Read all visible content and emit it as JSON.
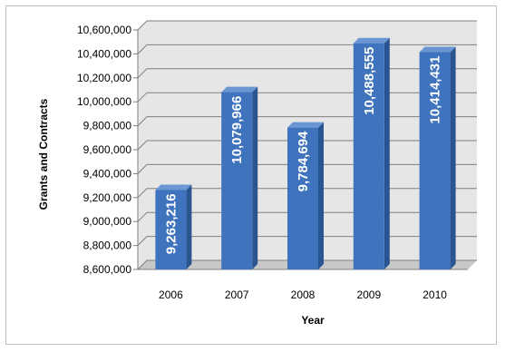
{
  "chart_data": {
    "type": "bar",
    "title": "",
    "xlabel": "Year",
    "ylabel": "Grants and Contracts",
    "categories": [
      "2006",
      "2007",
      "2008",
      "2009",
      "2010"
    ],
    "values": [
      9263216,
      10079966,
      9784694,
      10488555,
      10414431
    ],
    "value_labels": [
      "9,263,216",
      "10,079,966",
      "9,784,694",
      "10,488,555",
      "10,414,431"
    ],
    "ylim": [
      8600000,
      10600000
    ],
    "yticks": [
      8600000,
      8800000,
      9000000,
      9200000,
      9400000,
      9600000,
      9800000,
      10000000,
      10200000,
      10400000,
      10600000
    ],
    "ytick_labels": [
      "8,600,000",
      "8,800,000",
      "9,000,000",
      "9,200,000",
      "9,400,000",
      "9,600,000",
      "9,800,000",
      "10,000,000",
      "10,200,000",
      "10,400,000",
      "10,600,000"
    ],
    "grid": true,
    "legend": "none",
    "colors": {
      "bar_front": "#3f73bd",
      "bar_side": "#2a5590",
      "bar_top": "#6a96d4",
      "wall": "#e6e6e6",
      "floor": "#c8c8c8",
      "grid": "#7f7f7f"
    }
  }
}
